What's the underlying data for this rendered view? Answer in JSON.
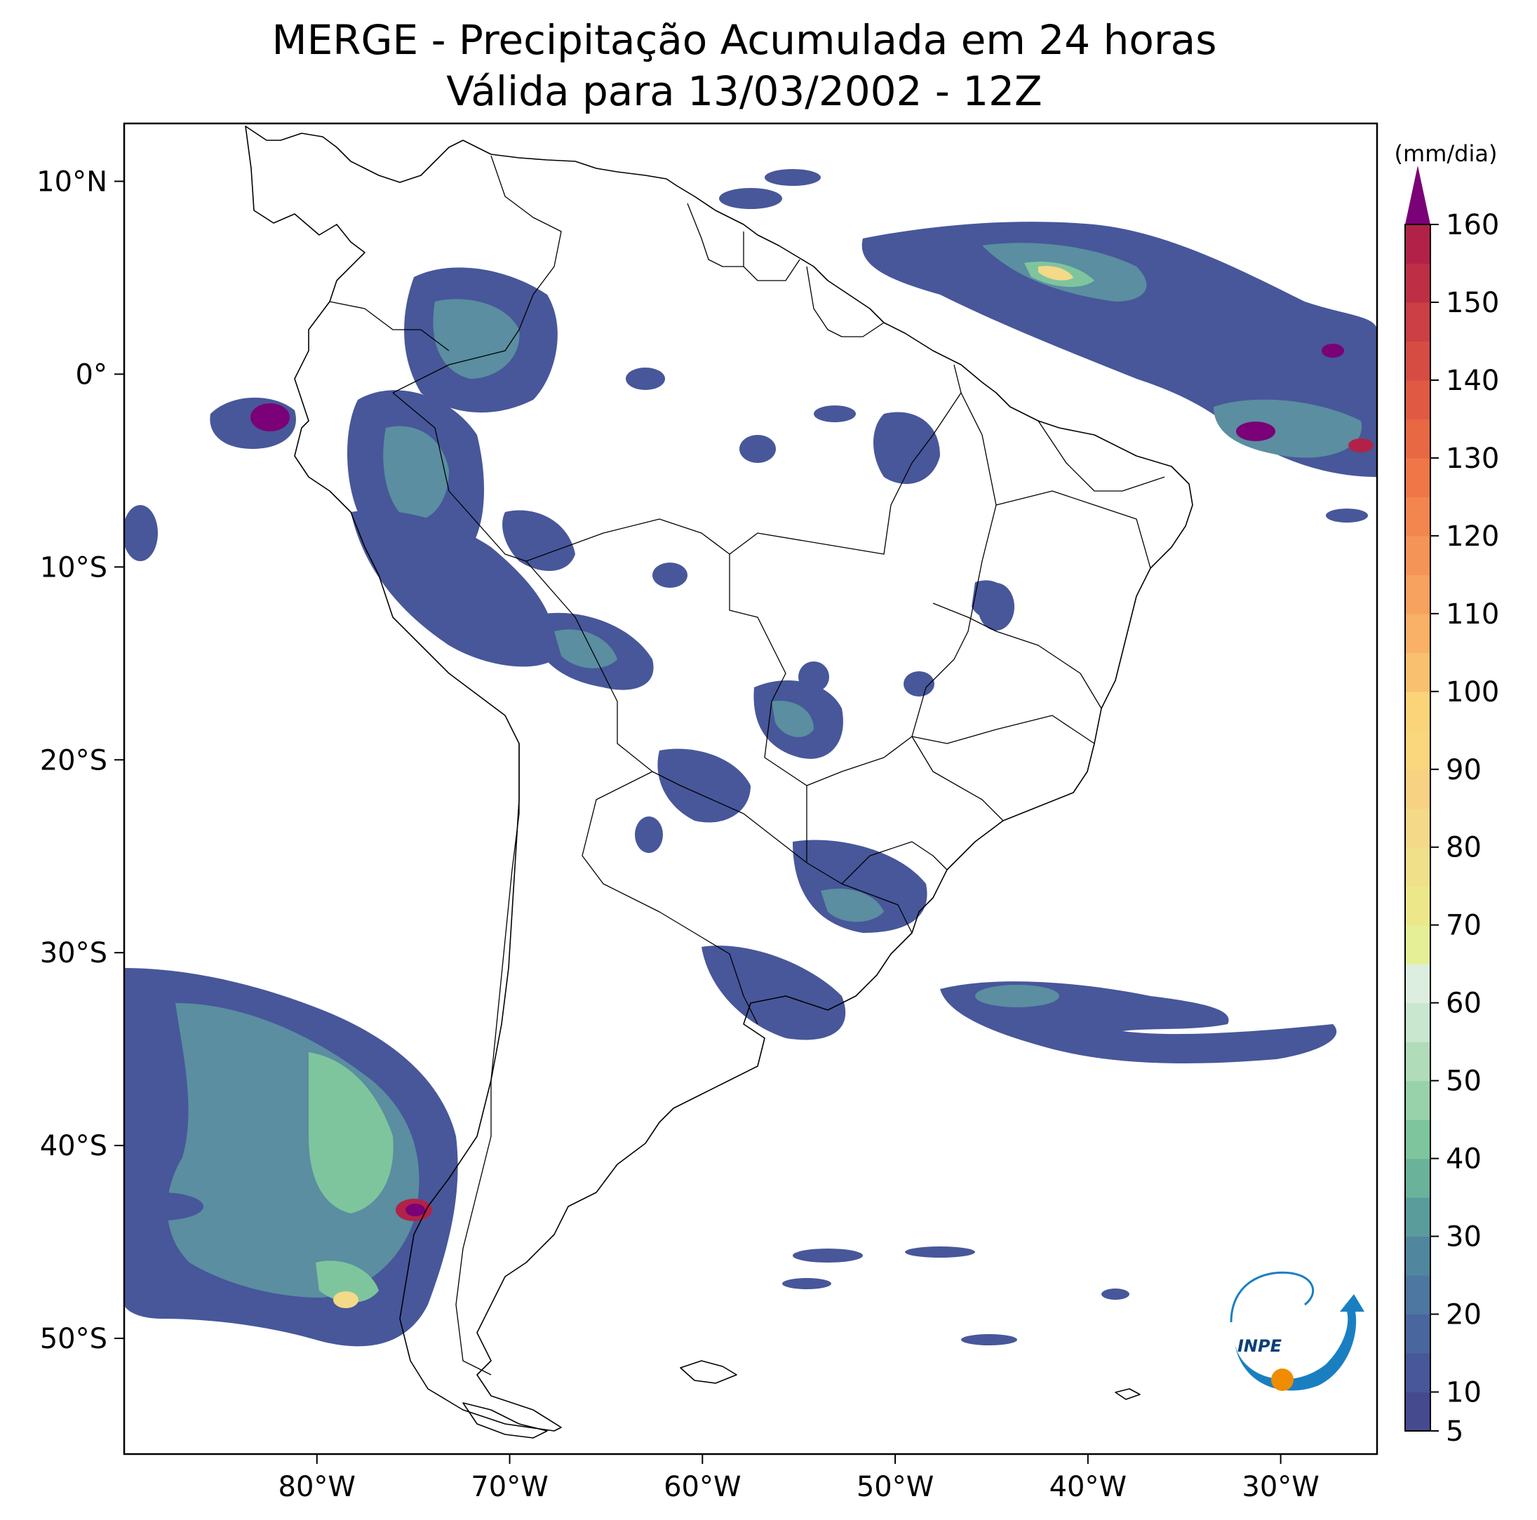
{
  "title": {
    "line1": "MERGE - Precipitação Acumulada em 24 horas",
    "line2": "Válida para 13/03/2002 - 12Z"
  },
  "map": {
    "lon_range": [
      -90,
      -25
    ],
    "lat_range": [
      -56,
      13
    ],
    "lon_ticks": [
      {
        "value": -80,
        "label": "80°W"
      },
      {
        "value": -70,
        "label": "70°W"
      },
      {
        "value": -60,
        "label": "60°W"
      },
      {
        "value": -50,
        "label": "50°W"
      },
      {
        "value": -40,
        "label": "40°W"
      },
      {
        "value": -30,
        "label": "30°W"
      }
    ],
    "lat_ticks": [
      {
        "value": 10,
        "label": "10°N"
      },
      {
        "value": 0,
        "label": "0°"
      },
      {
        "value": -10,
        "label": "10°S"
      },
      {
        "value": -20,
        "label": "20°S"
      },
      {
        "value": -30,
        "label": "30°S"
      },
      {
        "value": -40,
        "label": "40°S"
      },
      {
        "value": -50,
        "label": "50°S"
      }
    ]
  },
  "colorbar": {
    "unit": "(mm/dia)",
    "min": 5,
    "max": 160,
    "extend": "max",
    "extend_color": "#7a0177",
    "tick_labels": [
      {
        "value": 5,
        "label": "5"
      },
      {
        "value": 10,
        "label": "10"
      },
      {
        "value": 20,
        "label": "20"
      },
      {
        "value": 30,
        "label": "30"
      },
      {
        "value": 40,
        "label": "40"
      },
      {
        "value": 50,
        "label": "50"
      },
      {
        "value": 60,
        "label": "60"
      },
      {
        "value": 70,
        "label": "70"
      },
      {
        "value": 80,
        "label": "80"
      },
      {
        "value": 90,
        "label": "90"
      },
      {
        "value": 100,
        "label": "100"
      },
      {
        "value": 110,
        "label": "110"
      },
      {
        "value": 120,
        "label": "120"
      },
      {
        "value": 130,
        "label": "130"
      },
      {
        "value": 140,
        "label": "140"
      },
      {
        "value": 150,
        "label": "150"
      },
      {
        "value": 160,
        "label": "160"
      }
    ],
    "bands": [
      {
        "from": 5,
        "to": 10,
        "color": "#454a8f"
      },
      {
        "from": 10,
        "to": 15,
        "color": "#47579a"
      },
      {
        "from": 15,
        "to": 20,
        "color": "#4a669e"
      },
      {
        "from": 20,
        "to": 25,
        "color": "#4d76a0"
      },
      {
        "from": 25,
        "to": 30,
        "color": "#50879f"
      },
      {
        "from": 30,
        "to": 35,
        "color": "#5a9c9c"
      },
      {
        "from": 35,
        "to": 40,
        "color": "#6bb29a"
      },
      {
        "from": 40,
        "to": 45,
        "color": "#7ec59e"
      },
      {
        "from": 45,
        "to": 50,
        "color": "#97d2ab"
      },
      {
        "from": 50,
        "to": 55,
        "color": "#b1dcba"
      },
      {
        "from": 55,
        "to": 60,
        "color": "#c9e6cf"
      },
      {
        "from": 60,
        "to": 65,
        "color": "#dceee0"
      },
      {
        "from": 65,
        "to": 70,
        "color": "#e5ef95"
      },
      {
        "from": 70,
        "to": 75,
        "color": "#ece88a"
      },
      {
        "from": 75,
        "to": 80,
        "color": "#f0e08a"
      },
      {
        "from": 80,
        "to": 85,
        "color": "#f3d988"
      },
      {
        "from": 85,
        "to": 90,
        "color": "#f7d283"
      },
      {
        "from": 90,
        "to": 95,
        "color": "#fad67d"
      },
      {
        "from": 95,
        "to": 100,
        "color": "#fbd479"
      },
      {
        "from": 100,
        "to": 105,
        "color": "#f9c06f"
      },
      {
        "from": 105,
        "to": 110,
        "color": "#f8b166"
      },
      {
        "from": 110,
        "to": 115,
        "color": "#f7a25e"
      },
      {
        "from": 115,
        "to": 120,
        "color": "#f59457"
      },
      {
        "from": 120,
        "to": 125,
        "color": "#f3864f"
      },
      {
        "from": 125,
        "to": 130,
        "color": "#f07648"
      },
      {
        "from": 130,
        "to": 135,
        "color": "#e96844"
      },
      {
        "from": 135,
        "to": 140,
        "color": "#e05a43"
      },
      {
        "from": 140,
        "to": 145,
        "color": "#d64c43"
      },
      {
        "from": 145,
        "to": 150,
        "color": "#cc3f44"
      },
      {
        "from": 150,
        "to": 155,
        "color": "#be2f46"
      },
      {
        "from": 155,
        "to": 160,
        "color": "#b22248"
      }
    ]
  },
  "logo": {
    "text": "INPE",
    "primary_color": "#1a7fc1",
    "accent_color": "#f08c00"
  },
  "precip_levels": {
    "low": "#454a8f",
    "mid": "#5a8ea0",
    "high": "#7ec59e",
    "peak": "#f3d988",
    "extreme": "#7a0177"
  }
}
